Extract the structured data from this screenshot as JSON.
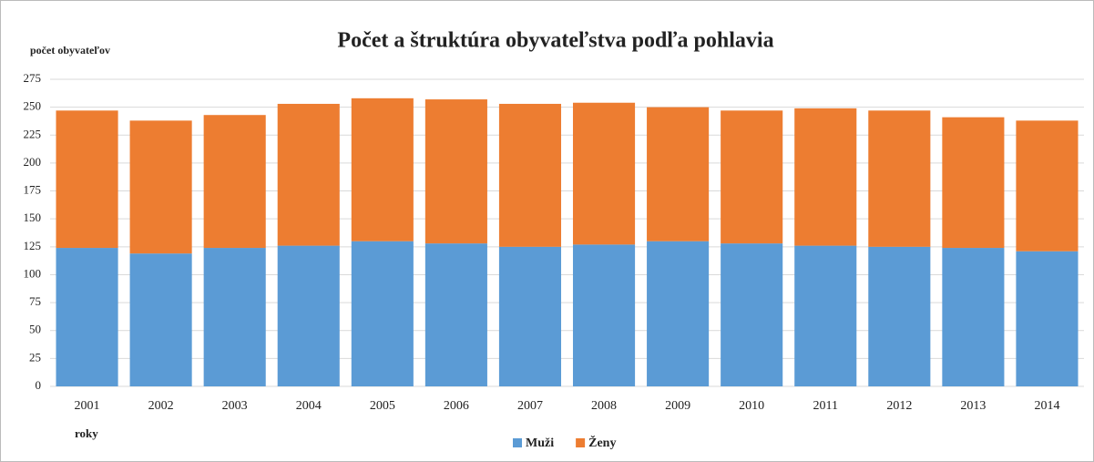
{
  "chart_data": {
    "type": "bar",
    "stacked": true,
    "title": "Počet a štruktúra obyvateľstva podľa pohlavia",
    "y_label": "počet obyvateľov",
    "x_label": "roky",
    "categories": [
      "2001",
      "2002",
      "2003",
      "2004",
      "2005",
      "2006",
      "2007",
      "2008",
      "2009",
      "2010",
      "2011",
      "2012",
      "2013",
      "2014"
    ],
    "series": [
      {
        "name": "Muži",
        "color": "#5b9bd5",
        "values": [
          124,
          119,
          124,
          126,
          130,
          128,
          125,
          127,
          130,
          128,
          126,
          125,
          124,
          121
        ]
      },
      {
        "name": "Ženy",
        "color": "#ed7d31",
        "values": [
          123,
          119,
          119,
          127,
          128,
          129,
          128,
          127,
          120,
          119,
          123,
          122,
          117,
          117
        ]
      }
    ],
    "ylim": [
      0,
      275
    ],
    "yticks": [
      0,
      25,
      50,
      75,
      100,
      125,
      150,
      175,
      200,
      225,
      250,
      275
    ],
    "grid": true,
    "legend": "bottom"
  }
}
